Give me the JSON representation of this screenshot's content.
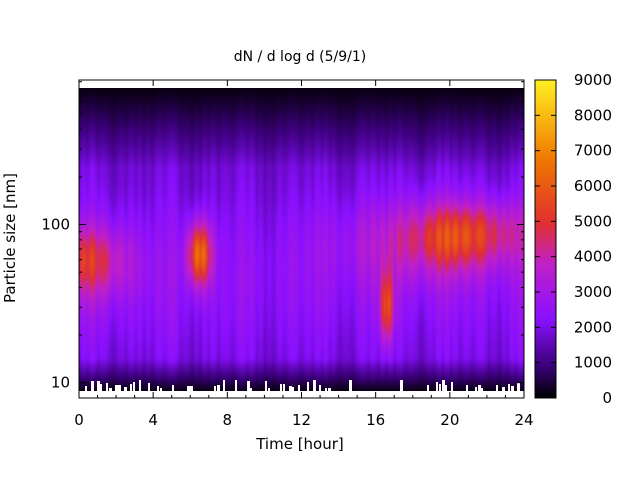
{
  "chart_data": {
    "type": "heatmap",
    "title": "dN / d log d (5/9/1)",
    "xlabel": "Time [hour]",
    "ylabel": "Particle size [nm]",
    "xlim": [
      0,
      24
    ],
    "ylim": [
      8,
      820
    ],
    "yscale": "log",
    "x_ticks": [
      0,
      4,
      8,
      12,
      16,
      20,
      24
    ],
    "x_tick_labels": [
      "0",
      "4",
      "8",
      "12",
      "16",
      "20",
      "24"
    ],
    "y_ticks": [
      10,
      100
    ],
    "y_tick_labels": [
      "10",
      "100"
    ],
    "colorbar": {
      "range": [
        0,
        9000
      ],
      "ticks": [
        0,
        1000,
        2000,
        3000,
        4000,
        5000,
        6000,
        7000,
        8000,
        9000
      ],
      "tick_labels": [
        "0",
        "1000",
        "2000",
        "3000",
        "4000",
        "5000",
        "6000",
        "7000",
        "8000",
        "9000"
      ],
      "colormap": "black-purple-magenta-red-orange-yellow",
      "stops": [
        "#000000",
        "#3a0078",
        "#8a10ff",
        "#c020c8",
        "#e03030",
        "#f07800",
        "#fff020"
      ]
    },
    "features": [
      {
        "time_hour": 0,
        "size_nm": 60,
        "peak_value": 4400
      },
      {
        "time_hour": 6.5,
        "size_nm": 65,
        "peak_value": 7000
      },
      {
        "time_hour": 16.6,
        "size_nm": 30,
        "peak_value": 6000
      },
      {
        "time_hour": 20,
        "size_nm": 85,
        "peak_value": 4400
      },
      {
        "time_hour": 22.5,
        "size_nm": 90,
        "peak_value": 3800
      }
    ],
    "grid": false,
    "legend": "colorbar-right"
  }
}
